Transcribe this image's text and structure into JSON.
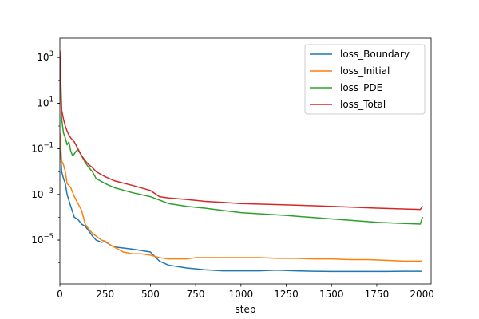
{
  "chart_data": {
    "type": "line",
    "title": "",
    "xlabel": "step",
    "ylabel": "",
    "xscale": "linear",
    "yscale": "log",
    "xlim": [
      0,
      2050
    ],
    "ylim": [
      1.2e-07,
      7000
    ],
    "xticks": [
      0,
      250,
      500,
      750,
      1000,
      1250,
      1500,
      1750,
      2000
    ],
    "xtick_labels": [
      "0",
      "250",
      "500",
      "750",
      "1000",
      "1250",
      "1500",
      "1750",
      "2000"
    ],
    "yticks": [
      1e-05,
      0.001,
      0.1,
      10,
      1000
    ],
    "ytick_labels": [
      {
        "base": "10",
        "exp": "−5"
      },
      {
        "base": "10",
        "exp": "−3"
      },
      {
        "base": "10",
        "exp": "−1"
      },
      {
        "base": "10",
        "exp": "1"
      },
      {
        "base": "10",
        "exp": "3"
      }
    ],
    "grid": false,
    "legend_position": "top-right",
    "series": [
      {
        "name": "loss_Boundary",
        "color": "#1f77b4",
        "x": [
          0,
          10,
          20,
          30,
          40,
          60,
          80,
          100,
          120,
          140,
          160,
          180,
          200,
          230,
          250,
          280,
          300,
          350,
          400,
          450,
          500,
          550,
          600,
          700,
          750,
          800,
          900,
          1000,
          1100,
          1200,
          1300,
          1400,
          1500,
          1600,
          1700,
          1800,
          1900,
          2000
        ],
        "y": [
          0.3,
          0.01,
          0.005,
          0.003,
          0.001,
          0.0003,
          0.0001,
          8e-05,
          5e-05,
          4e-05,
          2.5e-05,
          1.5e-05,
          1e-05,
          8e-06,
          8.5e-06,
          6e-06,
          5e-06,
          4.5e-06,
          4e-06,
          3.5e-06,
          3e-06,
          1.2e-06,
          8e-07,
          6e-07,
          5.5e-07,
          5e-07,
          4.5e-07,
          4.5e-07,
          4.5e-07,
          4.8e-07,
          4.5e-07,
          4.3e-07,
          4.2e-07,
          4.2e-07,
          4.2e-07,
          4.2e-07,
          4.3e-07,
          4.3e-07
        ]
      },
      {
        "name": "loss_Initial",
        "color": "#ff7f0e",
        "x": [
          0,
          10,
          20,
          30,
          40,
          60,
          80,
          100,
          120,
          140,
          160,
          180,
          200,
          230,
          250,
          280,
          300,
          350,
          400,
          450,
          500,
          550,
          600,
          700,
          750,
          800,
          1000,
          1100,
          1200,
          1300,
          1400,
          1500,
          1600,
          1700,
          1800,
          1900,
          2000
        ],
        "y": [
          0.5,
          0.03,
          0.02,
          0.01,
          0.003,
          0.002,
          0.0008,
          0.0004,
          0.0002,
          5e-05,
          3e-05,
          2e-05,
          1.5e-05,
          1e-05,
          9e-06,
          6e-06,
          5e-06,
          3e-06,
          2.5e-06,
          2.5e-06,
          2.2e-06,
          1.7e-06,
          1.5e-06,
          1.5e-06,
          1.7e-06,
          1.7e-06,
          1.7e-06,
          1.7e-06,
          1.6e-06,
          1.6e-06,
          1.5e-06,
          1.5e-06,
          1.4e-06,
          1.4e-06,
          1.3e-06,
          1.2e-06,
          1.2e-06
        ]
      },
      {
        "name": "loss_PDE",
        "color": "#2ca02c",
        "x": [
          0,
          10,
          20,
          30,
          40,
          50,
          60,
          70,
          80,
          90,
          100,
          120,
          140,
          160,
          180,
          200,
          250,
          300,
          400,
          500,
          600,
          700,
          800,
          900,
          1000,
          1250,
          1500,
          1750,
          1990,
          2000,
          2005
        ],
        "y": [
          200,
          2,
          0.5,
          0.3,
          0.15,
          0.2,
          0.08,
          0.05,
          0.06,
          0.08,
          0.09,
          0.05,
          0.025,
          0.015,
          0.01,
          0.005,
          0.003,
          0.002,
          0.0012,
          0.0008,
          0.0004,
          0.0003,
          0.00025,
          0.0002,
          0.00016,
          0.00012,
          8.5e-05,
          6e-05,
          5e-05,
          9e-05,
          0.0001
        ]
      },
      {
        "name": "loss_Total",
        "color": "#d62728",
        "x": [
          0,
          10,
          20,
          30,
          40,
          50,
          60,
          80,
          100,
          120,
          140,
          160,
          180,
          200,
          250,
          300,
          400,
          500,
          550,
          600,
          700,
          800,
          900,
          1000,
          1250,
          1500,
          1750,
          1990,
          2000,
          2005
        ],
        "y": [
          2000,
          5,
          2,
          1,
          0.6,
          0.4,
          0.3,
          0.2,
          0.1,
          0.05,
          0.03,
          0.02,
          0.015,
          0.01,
          0.006,
          0.004,
          0.0025,
          0.0015,
          0.0008,
          0.0007,
          0.0006,
          0.0005,
          0.00045,
          0.0004,
          0.00035,
          0.0003,
          0.00025,
          0.00022,
          0.00028,
          0.0003
        ]
      }
    ]
  }
}
